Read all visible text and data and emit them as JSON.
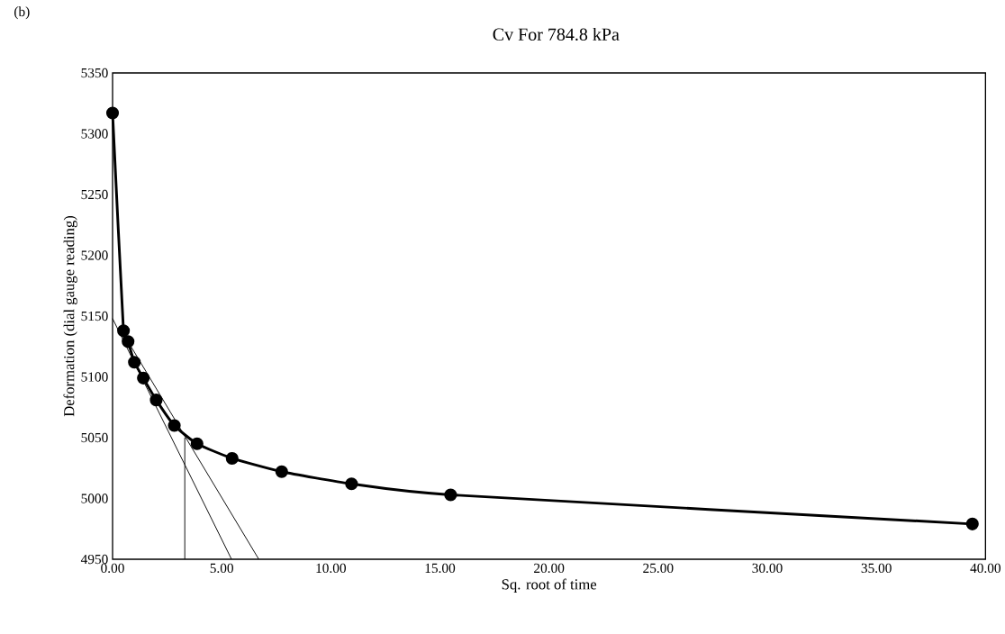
{
  "chart_data": {
    "type": "line",
    "title": "Cv For 784.8 kPa",
    "xlabel": "Sq. root of time",
    "ylabel": "Deformation (dial gauge reading)",
    "annotations": [
      "(b)"
    ],
    "xlim": [
      0,
      40
    ],
    "ylim": [
      4950,
      5350
    ],
    "xticks": [
      {
        "value": 0,
        "label": "0.00"
      },
      {
        "value": 5,
        "label": "5.00"
      },
      {
        "value": 10,
        "label": "10.00"
      },
      {
        "value": 15,
        "label": "15.00"
      },
      {
        "value": 20,
        "label": "20.00"
      },
      {
        "value": 25,
        "label": "25.00"
      },
      {
        "value": 30,
        "label": "30.00"
      },
      {
        "value": 35,
        "label": "35.00"
      },
      {
        "value": 40,
        "label": "40.00"
      }
    ],
    "yticks": [
      4950,
      5000,
      5050,
      5100,
      5150,
      5200,
      5250,
      5300,
      5350
    ],
    "grid": false,
    "marker": "circle",
    "line_style": "solid",
    "series": [
      {
        "color": "#000000",
        "x": [
          0,
          0.5,
          0.71,
          1,
          1.41,
          2,
          2.83,
          3.87,
          5.48,
          7.75,
          10.95,
          15.49,
          39.4
        ],
        "values": [
          5317,
          5138,
          5129,
          5112,
          5099,
          5081,
          5060,
          5045,
          5033,
          5022,
          5012,
          5003,
          4979
        ]
      },
      {
        "color": "#000000",
        "marker": "none",
        "x": [
          0,
          5.45
        ],
        "values": [
          5148,
          4950
        ]
      },
      {
        "color": "#000000",
        "marker": "none",
        "x": [
          0.71,
          6.7
        ],
        "values": [
          5129,
          4950
        ]
      },
      {
        "color": "#000000",
        "marker": "none",
        "x": [
          3.31,
          3.31
        ],
        "values": [
          4950,
          5050
        ]
      }
    ]
  }
}
